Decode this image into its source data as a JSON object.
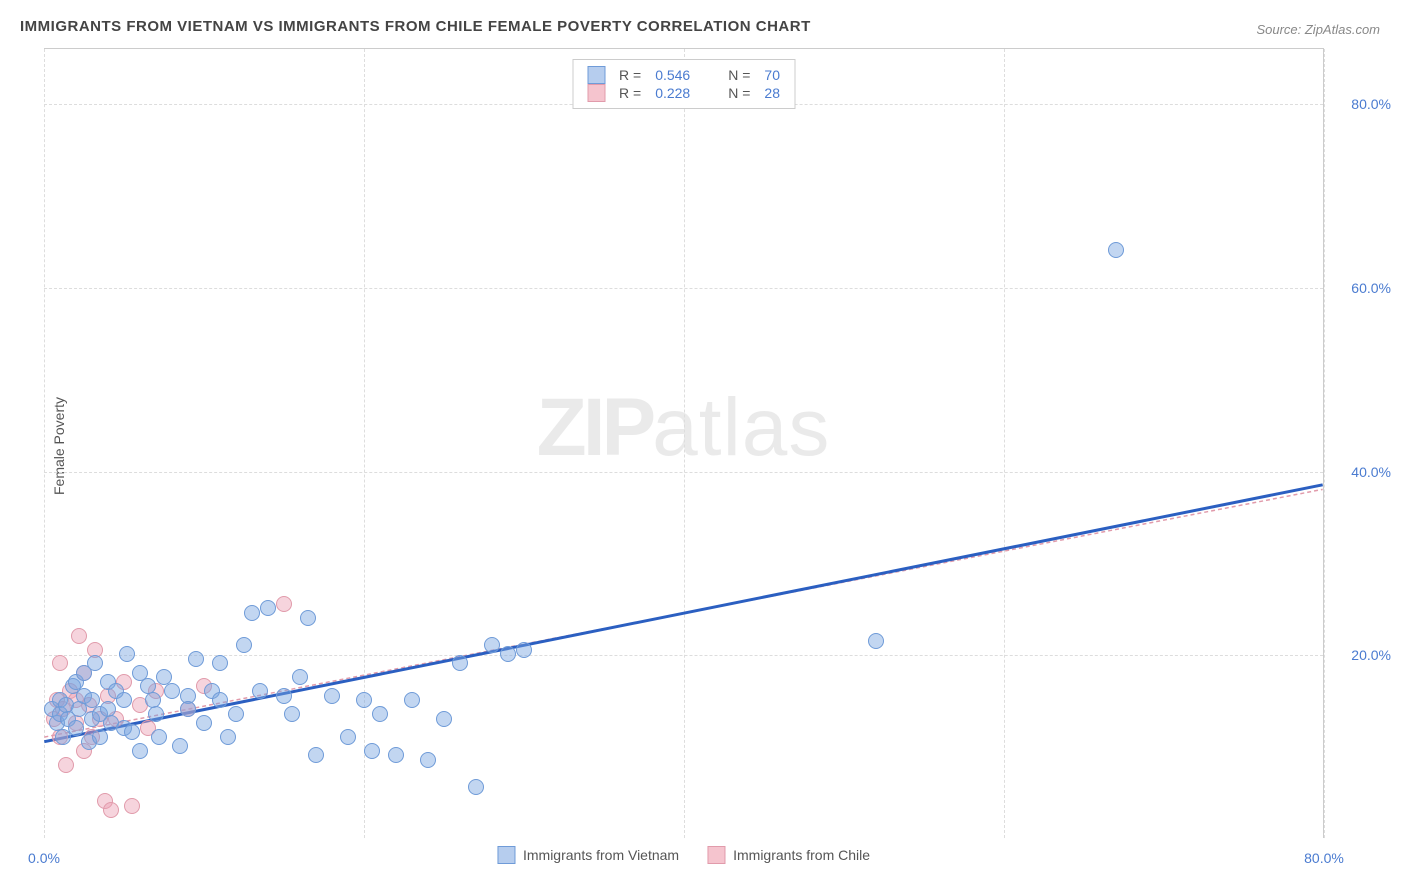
{
  "title": "IMMIGRANTS FROM VIETNAM VS IMMIGRANTS FROM CHILE FEMALE POVERTY CORRELATION CHART",
  "source": "Source: ZipAtlas.com",
  "y_axis_label": "Female Poverty",
  "watermark_bold": "ZIP",
  "watermark_light": "atlas",
  "xlim": [
    0,
    80
  ],
  "ylim": [
    0,
    86
  ],
  "y_ticks": [
    20,
    40,
    60,
    80
  ],
  "y_tick_labels": [
    "20.0%",
    "40.0%",
    "60.0%",
    "80.0%"
  ],
  "x_ticks": [
    0,
    20,
    40,
    60,
    80
  ],
  "x_tick_labels": [
    "0.0%",
    "",
    "",
    "",
    "80.0%"
  ],
  "grid_color": "#dddddd",
  "background_color": "#ffffff",
  "marker_radius": 8,
  "series": {
    "vietnam": {
      "label": "Immigrants from Vietnam",
      "swatch_fill": "#b6cdee",
      "swatch_border": "#6f9bd8",
      "point_fill": "rgba(120,165,225,0.45)",
      "point_border": "#6f9bd8",
      "trend_color": "#2b5fc1",
      "trend_width": 3,
      "trend_dash": "none",
      "stats": {
        "R_label": "R =",
        "R_value": "0.546",
        "N_label": "N =",
        "N_value": "70"
      },
      "trend_line": {
        "x1": 0,
        "y1": 10.5,
        "x2": 80,
        "y2": 38.5
      },
      "points": [
        [
          0.5,
          14
        ],
        [
          0.8,
          12.5
        ],
        [
          1,
          15
        ],
        [
          1,
          13.5
        ],
        [
          1.2,
          11
        ],
        [
          1.4,
          14.5
        ],
        [
          1.5,
          13
        ],
        [
          1.8,
          16.5
        ],
        [
          2,
          12
        ],
        [
          2,
          17
        ],
        [
          2.2,
          14
        ],
        [
          2.5,
          15.5
        ],
        [
          2.5,
          18
        ],
        [
          2.8,
          10.5
        ],
        [
          3,
          13
        ],
        [
          3,
          15
        ],
        [
          3.2,
          19
        ],
        [
          3.5,
          11
        ],
        [
          3.5,
          13.5
        ],
        [
          4,
          14
        ],
        [
          4,
          17
        ],
        [
          4.2,
          12.5
        ],
        [
          4.5,
          16
        ],
        [
          5,
          15
        ],
        [
          5,
          12
        ],
        [
          5.2,
          20
        ],
        [
          5.5,
          11.5
        ],
        [
          6,
          9.5
        ],
        [
          6,
          18
        ],
        [
          6.5,
          16.5
        ],
        [
          6.8,
          15
        ],
        [
          7,
          13.5
        ],
        [
          7.2,
          11
        ],
        [
          7.5,
          17.5
        ],
        [
          8,
          16
        ],
        [
          8.5,
          10
        ],
        [
          9,
          15.5
        ],
        [
          9,
          14
        ],
        [
          9.5,
          19.5
        ],
        [
          10,
          12.5
        ],
        [
          10.5,
          16
        ],
        [
          11,
          15
        ],
        [
          11,
          19
        ],
        [
          11.5,
          11
        ],
        [
          12,
          13.5
        ],
        [
          12.5,
          21
        ],
        [
          13,
          24.5
        ],
        [
          13.5,
          16
        ],
        [
          14,
          25
        ],
        [
          15,
          15.5
        ],
        [
          15.5,
          13.5
        ],
        [
          16,
          17.5
        ],
        [
          16.5,
          24
        ],
        [
          17,
          9
        ],
        [
          18,
          15.5
        ],
        [
          19,
          11
        ],
        [
          20,
          15
        ],
        [
          20.5,
          9.5
        ],
        [
          21,
          13.5
        ],
        [
          22,
          9
        ],
        [
          23,
          15
        ],
        [
          24,
          8.5
        ],
        [
          25,
          13
        ],
        [
          26,
          19
        ],
        [
          27,
          5.5
        ],
        [
          28,
          21
        ],
        [
          29,
          20
        ],
        [
          30,
          20.5
        ],
        [
          52,
          21.5
        ],
        [
          67,
          64
        ]
      ]
    },
    "chile": {
      "label": "Immigrants from Chile",
      "swatch_fill": "#f5c4ce",
      "swatch_border": "#e19bab",
      "point_fill": "rgba(235,160,180,0.45)",
      "point_border": "#e19bab",
      "trend_color": "#e19bab",
      "trend_width": 1.5,
      "trend_dash": "4,3",
      "stats": {
        "R_label": "R =",
        "R_value": "0.228",
        "N_label": "N =",
        "N_value": "28"
      },
      "trend_line": {
        "x1": 0,
        "y1": 11,
        "x2": 80,
        "y2": 38
      },
      "points": [
        [
          0.6,
          13
        ],
        [
          0.8,
          15
        ],
        [
          1,
          11
        ],
        [
          1,
          19
        ],
        [
          1.2,
          14
        ],
        [
          1.4,
          8
        ],
        [
          1.6,
          16
        ],
        [
          2,
          15
        ],
        [
          2,
          12.5
        ],
        [
          2.2,
          22
        ],
        [
          2.5,
          9.5
        ],
        [
          2.5,
          18
        ],
        [
          2.8,
          14.5
        ],
        [
          3,
          11
        ],
        [
          3.2,
          20.5
        ],
        [
          3.5,
          13
        ],
        [
          3.8,
          4
        ],
        [
          4,
          15.5
        ],
        [
          4.2,
          3
        ],
        [
          4.5,
          13
        ],
        [
          5,
          17
        ],
        [
          5.5,
          3.5
        ],
        [
          6,
          14.5
        ],
        [
          6.5,
          12
        ],
        [
          7,
          16
        ],
        [
          9,
          14
        ],
        [
          10,
          16.5
        ],
        [
          15,
          25.5
        ]
      ]
    }
  }
}
